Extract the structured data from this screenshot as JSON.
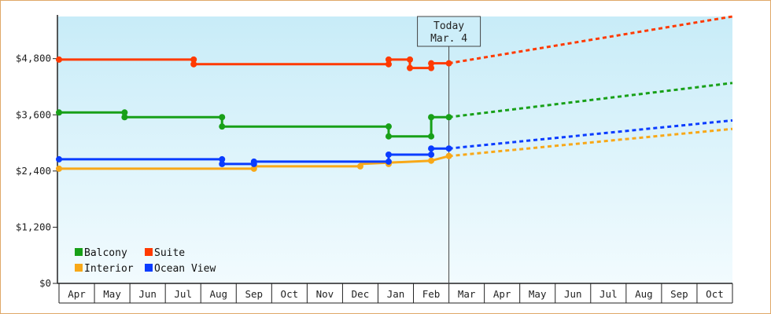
{
  "chart_data": {
    "type": "line",
    "y_ticks": [
      "$0",
      "$1,200",
      "$2,400",
      "$3,600",
      "$4,800"
    ],
    "ylim": [
      0,
      5700
    ],
    "x_ticks": [
      "Apr",
      "May",
      "Jun",
      "Jul",
      "Aug",
      "Sep",
      "Oct",
      "Nov",
      "Dec",
      "Jan",
      "Feb",
      "Mar",
      "Apr",
      "May",
      "Jun",
      "Jul",
      "Aug",
      "Sep",
      "Oct"
    ],
    "grid": false,
    "legend_placement": "bottom-left",
    "today_marker": {
      "line1": "Today",
      "line2": "Mar. 4",
      "x": 11.0
    },
    "series": [
      {
        "name": "Balcony",
        "color": "#18a018",
        "points": [
          [
            0,
            3650
          ],
          [
            1.85,
            3650
          ],
          [
            1.85,
            3550
          ],
          [
            4.6,
            3550
          ],
          [
            4.6,
            3350
          ],
          [
            9.3,
            3350
          ],
          [
            9.3,
            3140
          ],
          [
            10.5,
            3140
          ],
          [
            10.5,
            3550
          ],
          [
            11.0,
            3550
          ]
        ],
        "markers": [
          [
            0,
            3650
          ],
          [
            1.85,
            3650
          ],
          [
            1.85,
            3550
          ],
          [
            4.6,
            3550
          ],
          [
            4.6,
            3350
          ],
          [
            9.3,
            3350
          ],
          [
            9.3,
            3140
          ],
          [
            10.5,
            3140
          ],
          [
            10.5,
            3550
          ],
          [
            11.0,
            3550
          ]
        ],
        "projection": [
          [
            11.0,
            3550
          ],
          [
            19.0,
            4280
          ]
        ]
      },
      {
        "name": "Suite",
        "color": "#ff3a00",
        "points": [
          [
            0,
            4780
          ],
          [
            3.8,
            4780
          ],
          [
            3.8,
            4680
          ],
          [
            9.3,
            4680
          ],
          [
            9.3,
            4780
          ],
          [
            9.9,
            4780
          ],
          [
            9.9,
            4600
          ],
          [
            10.5,
            4600
          ],
          [
            10.5,
            4700
          ],
          [
            11.0,
            4700
          ]
        ],
        "markers": [
          [
            0,
            4780
          ],
          [
            3.8,
            4780
          ],
          [
            3.8,
            4680
          ],
          [
            9.3,
            4680
          ],
          [
            9.3,
            4780
          ],
          [
            9.9,
            4780
          ],
          [
            9.9,
            4600
          ],
          [
            10.5,
            4600
          ],
          [
            10.5,
            4700
          ],
          [
            11.0,
            4700
          ]
        ],
        "projection": [
          [
            11.0,
            4700
          ],
          [
            19.0,
            5700
          ]
        ]
      },
      {
        "name": "Interior",
        "color": "#f8a818",
        "points": [
          [
            0,
            2450
          ],
          [
            5.5,
            2450
          ],
          [
            5.5,
            2500
          ],
          [
            8.5,
            2500
          ],
          [
            8.5,
            2550
          ],
          [
            10.5,
            2620
          ],
          [
            11.0,
            2720
          ]
        ],
        "markers": [
          [
            0,
            2450
          ],
          [
            5.5,
            2450
          ],
          [
            8.5,
            2500
          ],
          [
            9.3,
            2550
          ],
          [
            10.5,
            2620
          ],
          [
            11.0,
            2720
          ]
        ],
        "projection": [
          [
            11.0,
            2720
          ],
          [
            19.0,
            3300
          ]
        ]
      },
      {
        "name": "Ocean View",
        "color": "#0a3cff",
        "points": [
          [
            0,
            2650
          ],
          [
            4.6,
            2650
          ],
          [
            4.6,
            2550
          ],
          [
            5.5,
            2550
          ],
          [
            5.5,
            2600
          ],
          [
            9.3,
            2600
          ],
          [
            9.3,
            2750
          ],
          [
            10.5,
            2750
          ],
          [
            10.5,
            2880
          ],
          [
            11.0,
            2880
          ]
        ],
        "markers": [
          [
            0,
            2650
          ],
          [
            4.6,
            2650
          ],
          [
            4.6,
            2550
          ],
          [
            5.5,
            2550
          ],
          [
            5.5,
            2600
          ],
          [
            9.3,
            2600
          ],
          [
            9.3,
            2750
          ],
          [
            10.5,
            2750
          ],
          [
            10.5,
            2880
          ],
          [
            11.0,
            2880
          ]
        ],
        "projection": [
          [
            11.0,
            2880
          ],
          [
            19.0,
            3480
          ]
        ]
      }
    ],
    "legend": [
      {
        "name": "Balcony",
        "color": "#18a018"
      },
      {
        "name": "Suite",
        "color": "#ff3a00"
      },
      {
        "name": "Interior",
        "color": "#f8a818"
      },
      {
        "name": "Ocean View",
        "color": "#0a3cff"
      }
    ]
  }
}
